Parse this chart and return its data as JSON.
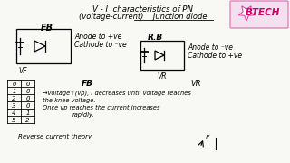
{
  "bg_color": "#f8f8f5",
  "title_line1": "V - I  characteristics of PN",
  "title_line2": "(voltage-current)    Junction diode",
  "fb_label": "FB",
  "rb_label": "R.B",
  "fb_anode": "Anode to +ve",
  "fb_cathode": "Cathode to ⁻ve",
  "rb_anode": "Anode to ⁻ve",
  "rb_cathode": "Cathode to +ve",
  "vf_label": "VF",
  "vr_label": "VR",
  "table_v": [
    "0",
    "1",
    "2",
    "3",
    "4",
    "5"
  ],
  "table_i": [
    "0",
    "0",
    "0",
    "0",
    "1",
    "2"
  ],
  "fb_text_label": "FB",
  "vr_text_label": "VR",
  "fb_desc1": "→voltage↑(vp), I decreases until voltage reaches",
  "fb_desc2": "the knee voltage.",
  "fb_desc3": "Once vp reaches the current increases",
  "fb_desc4": "rapidly.",
  "reverse_text": "Reverse current theory",
  "if_label": "If",
  "logo_bg": "#f5e0f0",
  "logo_star_color": "#ff69b4",
  "logo_star_fill": "#ffffff",
  "logo_text": "BTECH",
  "logo_text_color": "#cc0066"
}
